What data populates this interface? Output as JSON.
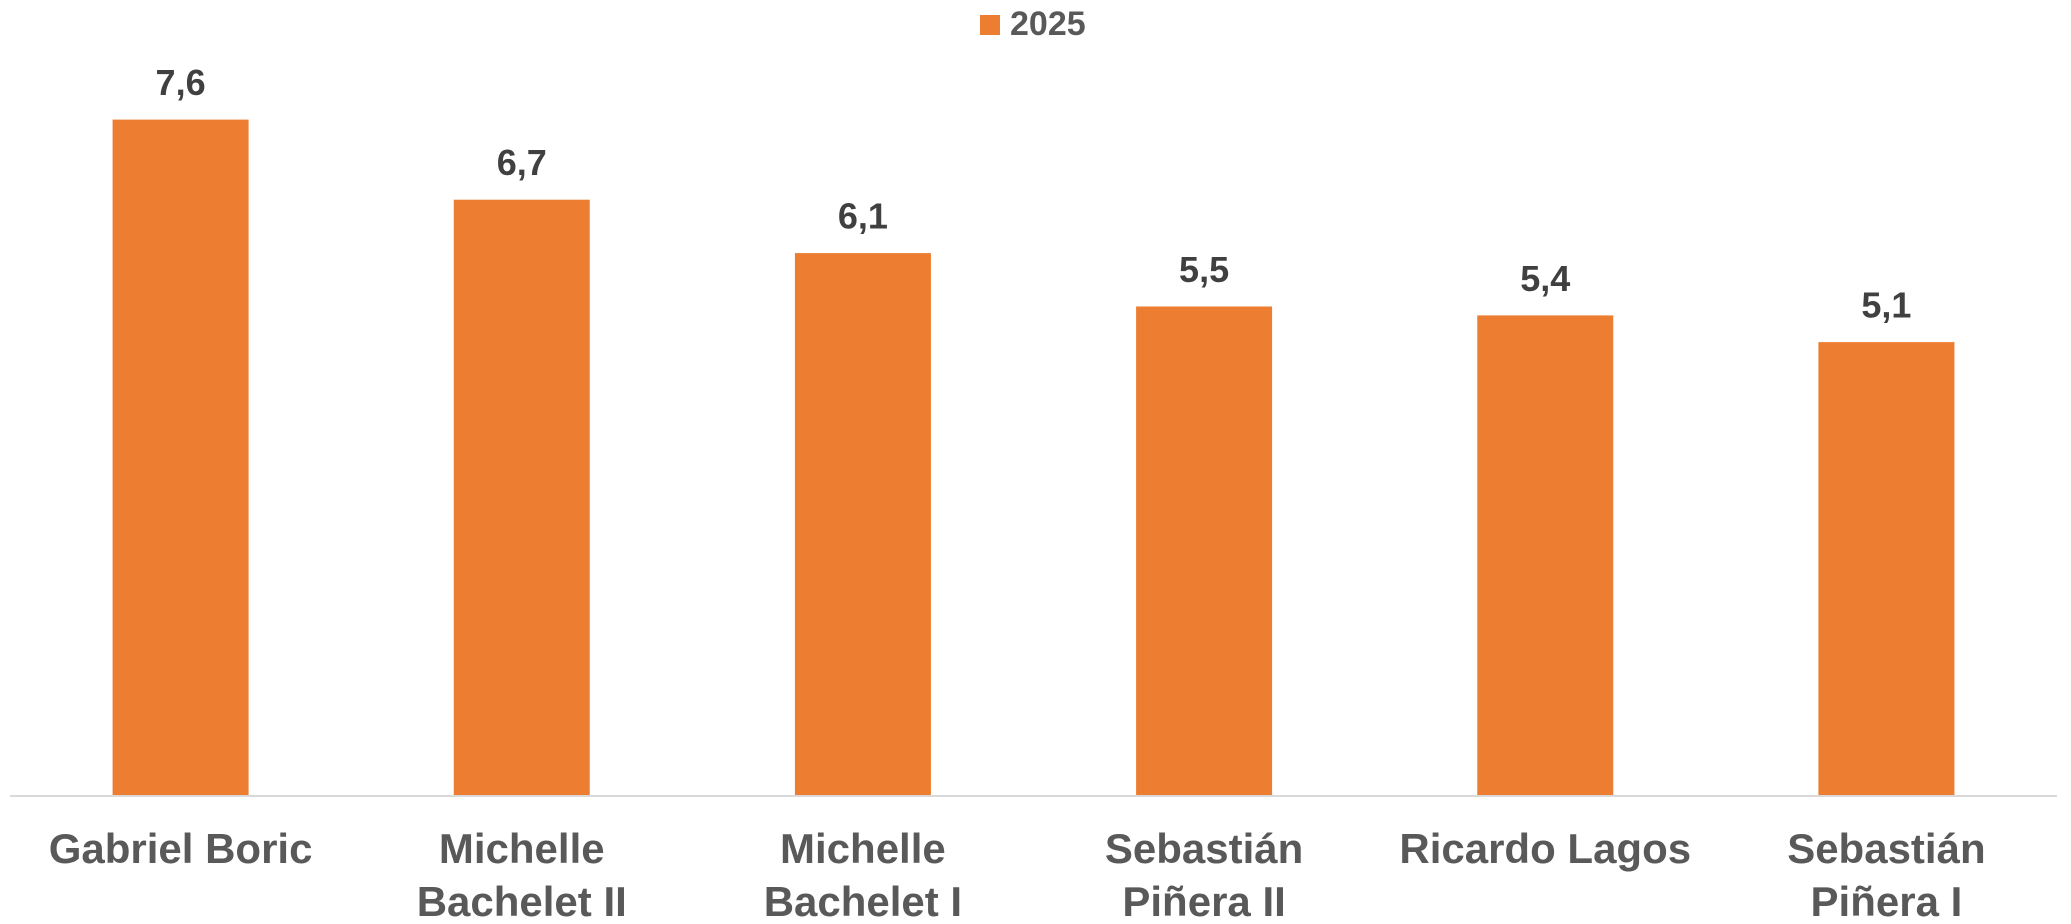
{
  "chart_data": {
    "type": "bar",
    "categories": [
      "Gabriel Boric",
      "Michelle Bachelet II",
      "Michelle Bachelet I",
      "Sebastián Piñera II",
      "Ricardo Lagos",
      "Sebastián Piñera I"
    ],
    "series": [
      {
        "name": "2025",
        "color": "#ed7d31",
        "values": [
          7.6,
          6.7,
          6.1,
          5.5,
          5.4,
          5.1
        ],
        "value_labels": [
          "7,6",
          "6,7",
          "6,1",
          "5,5",
          "5,4",
          "5,1"
        ]
      }
    ],
    "ylim": [
      0,
      8
    ],
    "legend": "top"
  }
}
